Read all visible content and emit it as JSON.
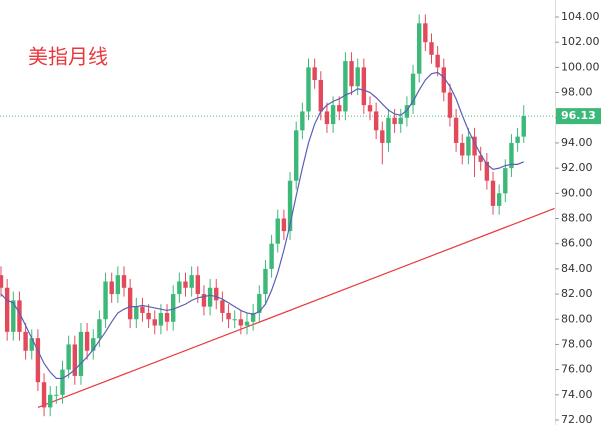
{
  "chart_data": {
    "type": "candlestick",
    "title": "美指月线",
    "up_color": "#3cb878",
    "down_color": "#e24a5c",
    "ylim": [
      72,
      104
    ],
    "yticks": [
      {
        "value": 72,
        "label": "72.00"
      },
      {
        "value": 74,
        "label": "74.00"
      },
      {
        "value": 76,
        "label": "76.00"
      },
      {
        "value": 78,
        "label": "78.00"
      },
      {
        "value": 80,
        "label": "80.00"
      },
      {
        "value": 82,
        "label": "82.00"
      },
      {
        "value": 84,
        "label": "84.00"
      },
      {
        "value": 86,
        "label": "86.00"
      },
      {
        "value": 88,
        "label": "88.00"
      },
      {
        "value": 90,
        "label": "90.00"
      },
      {
        "value": 92,
        "label": "92.00"
      },
      {
        "value": 94,
        "label": "94.00"
      },
      {
        "value": 96,
        "label": "96.00"
      },
      {
        "value": 98,
        "label": "98.00"
      },
      {
        "value": 100,
        "label": "100.00"
      },
      {
        "value": 102,
        "label": "102.00"
      },
      {
        "value": 104,
        "label": "104.00"
      }
    ],
    "ohlc": [
      [
        83.5,
        84.2,
        81.8,
        82.5
      ],
      [
        82.5,
        83.2,
        78.3,
        79
      ],
      [
        79,
        82.2,
        78.3,
        81.5
      ],
      [
        81.5,
        82.2,
        78.3,
        79
      ],
      [
        79,
        79.7,
        76.8,
        77.5
      ],
      [
        77.5,
        79.2,
        76.8,
        78.5
      ],
      [
        78.5,
        79.2,
        74.3,
        75
      ],
      [
        75,
        75.7,
        72.3,
        73
      ],
      [
        73,
        74.7,
        72.3,
        74
      ],
      [
        74,
        74.7,
        73.3,
        74
      ],
      [
        74,
        76.7,
        73.3,
        76
      ],
      [
        76,
        78.7,
        75.3,
        78
      ],
      [
        78,
        78.7,
        74.8,
        75.5
      ],
      [
        75.5,
        79.7,
        74.8,
        79
      ],
      [
        79,
        79.7,
        76.8,
        77.5
      ],
      [
        77.5,
        79.2,
        76.8,
        78.5
      ],
      [
        78.5,
        80.7,
        77.8,
        80
      ],
      [
        80,
        83.7,
        79.3,
        83
      ],
      [
        83,
        83.7,
        81.3,
        82
      ],
      [
        82,
        84.2,
        81.3,
        83.5
      ],
      [
        83.5,
        84.2,
        81.8,
        82.5
      ],
      [
        82.5,
        83.2,
        79.3,
        80
      ],
      [
        80,
        81.7,
        79.3,
        81
      ],
      [
        81,
        81.7,
        79.8,
        80.5
      ],
      [
        80.5,
        81.2,
        79.3,
        80
      ],
      [
        80,
        80.7,
        78.8,
        79.5
      ],
      [
        79.5,
        81.2,
        78.8,
        80.5
      ],
      [
        80.5,
        81.2,
        79.1,
        79.8
      ],
      [
        79.8,
        82.7,
        79.1,
        82
      ],
      [
        82,
        83.7,
        81.3,
        83
      ],
      [
        83,
        83.7,
        81.8,
        82.5
      ],
      [
        82.5,
        84.2,
        81.8,
        83.5
      ],
      [
        83.5,
        84.2,
        81.3,
        82
      ],
      [
        82,
        82.7,
        80.3,
        81
      ],
      [
        81,
        83.2,
        80.3,
        82.5
      ],
      [
        82.5,
        83.2,
        80.8,
        81.5
      ],
      [
        81.5,
        82.2,
        79.8,
        80.5
      ],
      [
        80.5,
        81.2,
        79.3,
        80
      ],
      [
        80,
        80.7,
        79.3,
        80
      ],
      [
        80,
        80.7,
        78.8,
        79.5
      ],
      [
        79.5,
        80.5,
        78.8,
        79.8
      ],
      [
        79.8,
        81.2,
        79.1,
        80.5
      ],
      [
        80.5,
        82.7,
        79.8,
        82
      ],
      [
        82,
        84.7,
        81.3,
        84
      ],
      [
        84,
        86.7,
        83.3,
        86
      ],
      [
        86,
        88.7,
        85.3,
        88
      ],
      [
        88,
        88.7,
        86.3,
        87
      ],
      [
        87,
        91.7,
        86.3,
        91
      ],
      [
        91,
        95.7,
        90.3,
        95
      ],
      [
        95,
        97.2,
        94.3,
        96.5
      ],
      [
        96.5,
        100.7,
        95.8,
        100
      ],
      [
        100,
        100.7,
        98.3,
        99
      ],
      [
        99,
        99.7,
        95.8,
        96.5
      ],
      [
        96.5,
        97.2,
        94.8,
        95.5
      ],
      [
        95.5,
        97.7,
        94.8,
        97
      ],
      [
        97,
        97.7,
        95.8,
        96.5
      ],
      [
        96.5,
        101.2,
        95.8,
        100.5
      ],
      [
        100.5,
        101.2,
        97.8,
        98.5
      ],
      [
        98.5,
        100.7,
        97.8,
        100
      ],
      [
        100,
        100.7,
        96.3,
        97
      ],
      [
        97,
        97.7,
        95.8,
        96.5
      ],
      [
        96.5,
        97.2,
        94.3,
        95
      ],
      [
        95,
        95.7,
        92.3,
        94
      ],
      [
        94,
        96.7,
        93.3,
        96
      ],
      [
        96,
        96.7,
        94.8,
        95.5
      ],
      [
        95.5,
        96.7,
        94.8,
        96
      ],
      [
        96,
        97.7,
        95.3,
        97
      ],
      [
        97,
        100.2,
        96.3,
        99.5
      ],
      [
        99.5,
        104.2,
        98.8,
        103.5
      ],
      [
        103.5,
        104.2,
        101.3,
        102
      ],
      [
        102,
        102.7,
        100.3,
        101
      ],
      [
        101,
        101.7,
        99.3,
        100
      ],
      [
        100,
        100.7,
        97.3,
        98
      ],
      [
        98,
        98.7,
        95.3,
        96
      ],
      [
        96,
        96.7,
        93.3,
        94
      ],
      [
        94,
        94.7,
        92.3,
        93
      ],
      [
        93,
        95.2,
        92.3,
        94.5
      ],
      [
        94.5,
        95.2,
        91.3,
        93
      ],
      [
        93,
        93.7,
        91.8,
        92.5
      ],
      [
        92.5,
        93.2,
        90.3,
        91
      ],
      [
        91,
        91.7,
        88.3,
        89
      ],
      [
        89,
        90.7,
        88.3,
        90
      ],
      [
        90,
        92.7,
        89.3,
        92
      ],
      [
        92,
        94.7,
        91.3,
        94
      ],
      [
        94,
        95.2,
        93.3,
        94.5
      ],
      [
        94.5,
        97,
        94,
        96.13
      ]
    ],
    "ma": {
      "color": "#5b5fb5",
      "values": [
        82,
        81.5,
        81.3,
        80.5,
        79.5,
        78.5,
        77.5,
        76.5,
        75.8,
        75.3,
        75.3,
        75.6,
        76,
        76.5,
        77,
        77.6,
        78.3,
        79,
        79.8,
        80.5,
        80.8,
        81,
        81,
        81.1,
        81,
        80.9,
        80.8,
        80.7,
        80.8,
        81,
        81.2,
        81.5,
        81.7,
        81.8,
        81.9,
        81.8,
        81.6,
        81.3,
        81,
        80.7,
        80.5,
        80.4,
        80.6,
        81.2,
        82.3,
        83.7,
        85.5,
        87.5,
        89.8,
        92,
        94,
        95.5,
        96.5,
        97,
        97.3,
        97.5,
        97.8,
        98,
        98.3,
        98.2,
        98,
        97.6,
        97.1,
        96.6,
        96.3,
        96.2,
        96.6,
        97.3,
        98.2,
        99,
        99.5,
        99.6,
        99.2,
        98.5,
        97.5,
        96.2,
        95,
        94,
        93.1,
        92.3,
        91.9,
        92,
        92.2,
        92.3,
        92.3,
        92.5
      ]
    },
    "trendline": {
      "color": "#e8383d",
      "x": [
        6,
        90
      ],
      "values": [
        73,
        88.8
      ]
    },
    "current_price": {
      "value": 96.13,
      "label": "96.13",
      "color": "#3cb878"
    }
  }
}
